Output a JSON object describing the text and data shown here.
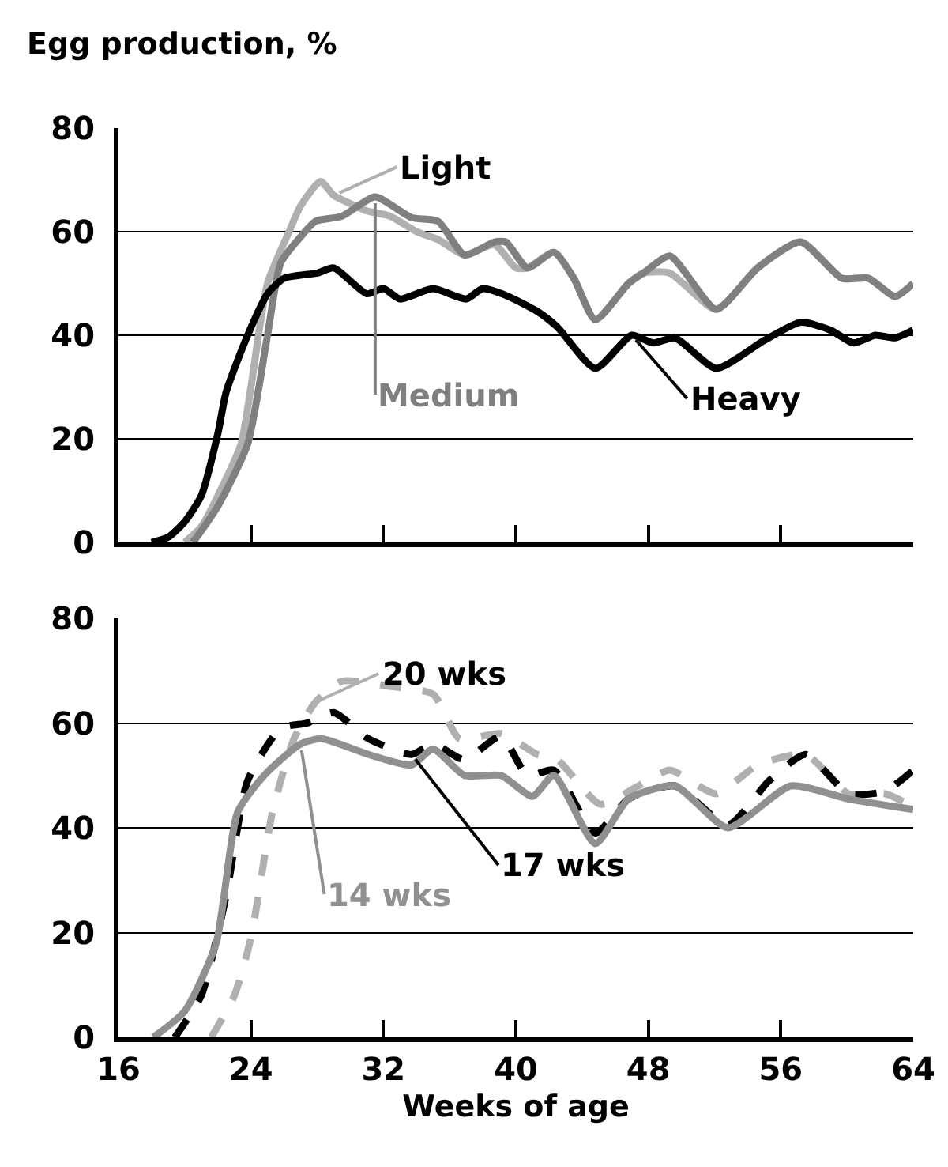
{
  "chart_data": [
    {
      "type": "line",
      "ylabel": "Egg production, %",
      "xlim": [
        16,
        64
      ],
      "xticks": [
        16,
        24,
        32,
        40,
        48,
        56,
        64
      ],
      "ylim": [
        0,
        80
      ],
      "yticks": [
        0,
        20,
        40,
        60,
        80
      ],
      "grid": "y",
      "tick_labels": "y",
      "marker": "none",
      "series": [
        {
          "name": "Light",
          "color": "#b0b0b0",
          "line_style": "solid",
          "x": [
            20,
            21,
            22,
            23.4,
            24,
            25,
            26.3,
            27,
            28.2,
            29,
            29.8,
            31,
            32.4,
            34,
            35.3,
            36.9,
            38.7,
            40,
            40.7,
            42.3,
            43.5,
            44.8,
            46.8,
            47.7,
            49.3,
            52.1,
            54.6,
            57.2,
            59.7,
            61.3,
            62.9,
            64
          ],
          "values": [
            0,
            3,
            9,
            19,
            30,
            50,
            60,
            65,
            69.7,
            67,
            65.7,
            64,
            63,
            60,
            58.5,
            55.5,
            57.5,
            53,
            53,
            56,
            51,
            43,
            50,
            52,
            52,
            45,
            53,
            58,
            51,
            51,
            47.5,
            50
          ]
        },
        {
          "name": "Medium",
          "color": "#808080",
          "line_style": "solid",
          "x": [
            20.5,
            22,
            23.8,
            25,
            25.8,
            27,
            27.9,
            29.5,
            31.5,
            33.7,
            35.3,
            36.9,
            38.7,
            39.4,
            40.7,
            42.3,
            43.5,
            44.8,
            46.8,
            47.7,
            49.3,
            52.1,
            54.6,
            57.2,
            59.7,
            61.3,
            62.9,
            64
          ],
          "values": [
            0,
            7,
            19,
            40,
            54,
            59,
            62,
            63,
            66.7,
            62.7,
            62,
            55.5,
            58,
            58,
            53,
            56,
            51,
            43,
            50,
            52,
            55.3,
            45,
            53,
            58,
            51,
            51,
            47.5,
            50
          ]
        },
        {
          "name": "Heavy",
          "color": "#000000",
          "line_style": "solid",
          "x": [
            18,
            19,
            20,
            21,
            22,
            22.5,
            23.8,
            25,
            26,
            28,
            29,
            31,
            32,
            33,
            35,
            37,
            38,
            39.4,
            41.3,
            42.5,
            44.8,
            47,
            48.3,
            49.6,
            52.1,
            55,
            57.2,
            59,
            60.4,
            61.7,
            62.9,
            64
          ],
          "values": [
            0,
            1,
            4,
            9,
            21,
            29,
            40,
            48,
            51,
            52,
            53,
            48,
            49,
            47,
            49,
            47,
            49,
            47.7,
            44.6,
            41.6,
            33.6,
            40,
            38.5,
            39.5,
            33.6,
            39,
            42.5,
            41,
            38.5,
            40,
            39.5,
            41
          ]
        }
      ]
    },
    {
      "type": "line",
      "xlabel": "Weeks of age",
      "xlim": [
        16,
        64
      ],
      "xticks": [
        16,
        24,
        32,
        40,
        48,
        56,
        64
      ],
      "ylim": [
        0,
        80
      ],
      "yticks": [
        0,
        20,
        40,
        60,
        80
      ],
      "grid": "y",
      "marker": "none",
      "series": [
        {
          "name": "20 wks",
          "color": "#b0b0b0",
          "line_style": "dashed",
          "x": [
            21.6,
            23,
            24,
            25.3,
            26.6,
            27.9,
            29.5,
            32.4,
            35,
            36.6,
            39.1,
            41.3,
            42.5,
            45.1,
            47.4,
            49.3,
            52.1,
            54.6,
            57.5,
            60.1,
            62.3,
            64
          ],
          "values": [
            0,
            8,
            19,
            43,
            57,
            64,
            68,
            67,
            65.5,
            57,
            58,
            54,
            53,
            44.5,
            48,
            51,
            46.5,
            52,
            54,
            46.5,
            46.5,
            44
          ]
        },
        {
          "name": "17 wks",
          "color": "#000000",
          "line_style": "dashed",
          "x": [
            19.4,
            21,
            22.5,
            23.8,
            25.8,
            27.4,
            29,
            31.1,
            33.7,
            35,
            36.9,
            39.1,
            40.7,
            42.3,
            44.8,
            46.8,
            49.6,
            52.8,
            55.3,
            57.5,
            60.1,
            62.3,
            64
          ],
          "values": [
            0,
            8,
            27,
            49,
            59,
            60,
            62,
            57,
            54,
            56,
            53,
            57.5,
            50,
            51,
            39,
            45.5,
            48,
            40.5,
            49,
            54,
            46.5,
            47,
            51
          ]
        },
        {
          "name": "14 wks",
          "color": "#909090",
          "line_style": "solid",
          "x": [
            18.1,
            20,
            21.9,
            23.2,
            24.8,
            27,
            28.3,
            31.1,
            33.7,
            35,
            36.9,
            39.1,
            41,
            42.3,
            44.8,
            46.8,
            49.6,
            52.8,
            56.6,
            60.1,
            64
          ],
          "values": [
            0,
            5,
            18,
            43,
            50,
            56,
            57,
            54,
            52,
            55,
            50,
            50,
            46,
            50,
            37,
            45.5,
            48,
            40,
            48,
            45.5,
            43.5
          ]
        }
      ]
    }
  ]
}
